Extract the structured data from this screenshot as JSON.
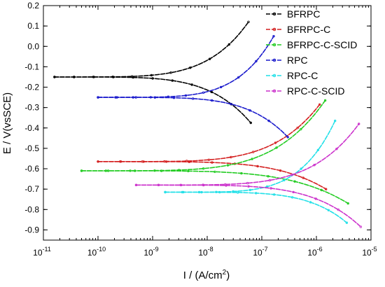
{
  "chart_data": {
    "type": "line",
    "xlabel": "I / (A/cm",
    "xlabel_sup": "2",
    "xlabel_close": ")",
    "ylabel": "E / V(vsSCE)",
    "x_scale": "log",
    "xlim": [
      1e-11,
      1e-05
    ],
    "ylim": [
      -0.95,
      0.2
    ],
    "x_ticks": [
      {
        "value": 1e-11,
        "base": "10",
        "exp": "-11"
      },
      {
        "value": 1e-10,
        "base": "10",
        "exp": "-10"
      },
      {
        "value": 1e-09,
        "base": "10",
        "exp": "-9"
      },
      {
        "value": 1e-08,
        "base": "10",
        "exp": "-8"
      },
      {
        "value": 1e-07,
        "base": "10",
        "exp": "-7"
      },
      {
        "value": 1e-06,
        "base": "10",
        "exp": "-6"
      },
      {
        "value": 1e-05,
        "base": "10",
        "exp": "-5"
      }
    ],
    "y_ticks": [
      {
        "value": 0.2,
        "label": "0.2"
      },
      {
        "value": 0.1,
        "label": "0.1"
      },
      {
        "value": 0.0,
        "label": "0.0"
      },
      {
        "value": -0.1,
        "label": "-0.1"
      },
      {
        "value": -0.2,
        "label": "-0.2"
      },
      {
        "value": -0.3,
        "label": "-0.3"
      },
      {
        "value": -0.4,
        "label": "-0.4"
      },
      {
        "value": -0.5,
        "label": "-0.5"
      },
      {
        "value": -0.6,
        "label": "-0.6"
      },
      {
        "value": -0.7,
        "label": "-0.7"
      },
      {
        "value": -0.8,
        "label": "-0.8"
      },
      {
        "value": -0.9,
        "label": "-0.9"
      }
    ],
    "grid": false,
    "legend_position": "top-right",
    "series": [
      {
        "name": "BFRPC",
        "color": "#000000",
        "ecorr": -0.15,
        "xmin": 1.6e-11,
        "anodic": {
          "end_x": 5.7e-08,
          "end_y": 0.12
        },
        "cathodic": {
          "end_x": 6.3e-08,
          "end_y": -0.375
        }
      },
      {
        "name": "BFRPC-C",
        "color": "#d42020",
        "ecorr": -0.565,
        "xmin": 1e-10,
        "anodic": {
          "end_x": 1.15e-06,
          "end_y": -0.285
        },
        "cathodic": {
          "end_x": 1.5e-06,
          "end_y": -0.7
        }
      },
      {
        "name": "BFRPC-C-SCID",
        "color": "#22cc22",
        "ecorr": -0.61,
        "xmin": 5e-11,
        "anodic": {
          "end_x": 1.45e-06,
          "end_y": -0.265
        },
        "cathodic": {
          "end_x": 3.8e-06,
          "end_y": -0.77
        }
      },
      {
        "name": "RPC",
        "color": "#1a1acc",
        "ecorr": -0.25,
        "xmin": 1e-10,
        "anodic": {
          "end_x": 1.65e-07,
          "end_y": 0.05
        },
        "cathodic": {
          "end_x": 3e-07,
          "end_y": -0.445
        }
      },
      {
        "name": "RPC-C",
        "color": "#22e0e8",
        "ecorr": -0.715,
        "xmin": 1.7e-09,
        "anodic": {
          "end_x": 2.2e-06,
          "end_y": -0.365
        },
        "cathodic": {
          "end_x": 3.6e-06,
          "end_y": -0.865
        }
      },
      {
        "name": "RPC-C-SCID",
        "color": "#cc33cc",
        "ecorr": -0.68,
        "xmin": 5e-10,
        "anodic": {
          "end_x": 6e-06,
          "end_y": -0.38
        },
        "cathodic": {
          "end_x": 6.5e-06,
          "end_y": -0.885
        }
      }
    ]
  }
}
